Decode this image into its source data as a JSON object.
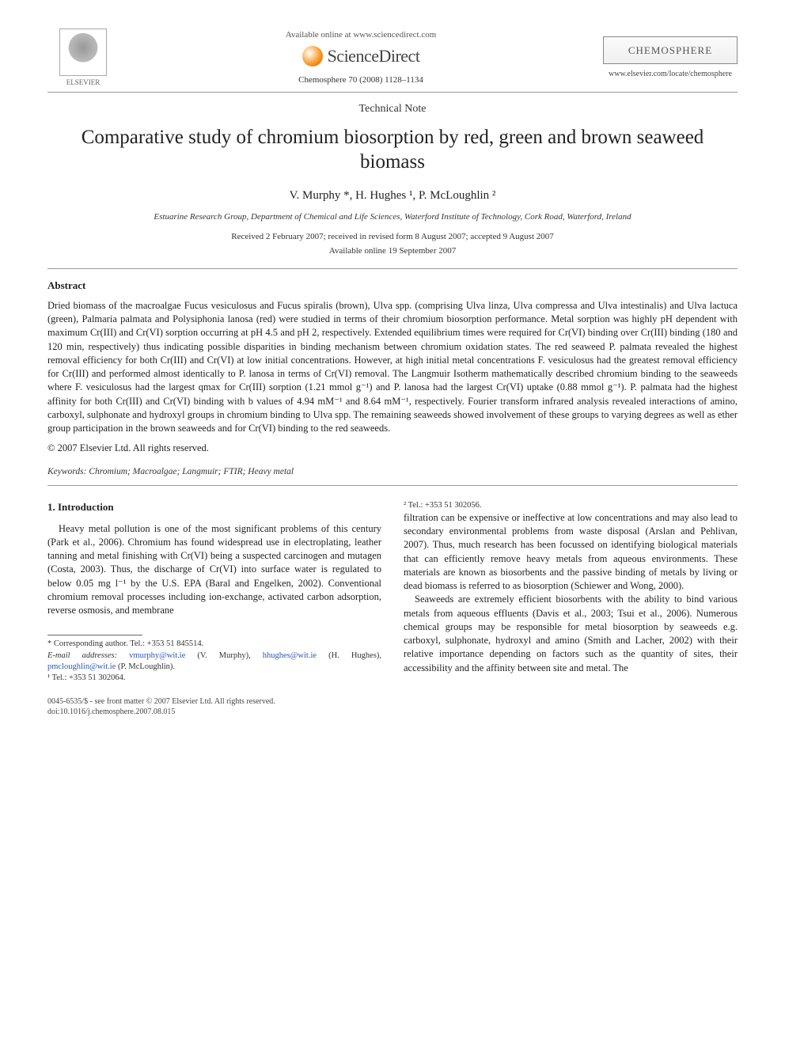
{
  "header": {
    "publisher_name": "ELSEVIER",
    "available_online": "Available online at www.sciencedirect.com",
    "sciencedirect": "ScienceDirect",
    "journal_line": "Chemosphere 70 (2008) 1128–1134",
    "journal_box": "CHEMOSPHERE",
    "journal_url": "www.elsevier.com/locate/chemosphere"
  },
  "article": {
    "note_type": "Technical Note",
    "title": "Comparative study of chromium biosorption by red, green and brown seaweed biomass",
    "authors_html": "V. Murphy *, H. Hughes ¹, P. McLoughlin ²",
    "affiliation": "Estuarine Research Group, Department of Chemical and Life Sciences, Waterford Institute of Technology, Cork Road, Waterford, Ireland",
    "received": "Received 2 February 2007; received in revised form 8 August 2007; accepted 9 August 2007",
    "online": "Available online 19 September 2007"
  },
  "abstract": {
    "heading": "Abstract",
    "body": "Dried biomass of the macroalgae Fucus vesiculosus and Fucus spiralis (brown), Ulva spp. (comprising Ulva linza, Ulva compressa and Ulva intestinalis) and Ulva lactuca (green), Palmaria palmata and Polysiphonia lanosa (red) were studied in terms of their chromium biosorption performance. Metal sorption was highly pH dependent with maximum Cr(III) and Cr(VI) sorption occurring at pH 4.5 and pH 2, respectively. Extended equilibrium times were required for Cr(VI) binding over Cr(III) binding (180 and 120 min, respectively) thus indicating possible disparities in binding mechanism between chromium oxidation states. The red seaweed P. palmata revealed the highest removal efficiency for both Cr(III) and Cr(VI) at low initial concentrations. However, at high initial metal concentrations F. vesiculosus had the greatest removal efficiency for Cr(III) and performed almost identically to P. lanosa in terms of Cr(VI) removal. The Langmuir Isotherm mathematically described chromium binding to the seaweeds where F. vesiculosus had the largest qmax for Cr(III) sorption (1.21 mmol g⁻¹) and P. lanosa had the largest Cr(VI) uptake (0.88 mmol g⁻¹). P. palmata had the highest affinity for both Cr(III) and Cr(VI) binding with b values of 4.94 mM⁻¹ and 8.64 mM⁻¹, respectively. Fourier transform infrared analysis revealed interactions of amino, carboxyl, sulphonate and hydroxyl groups in chromium binding to Ulva spp. The remaining seaweeds showed involvement of these groups to varying degrees as well as ether group participation in the brown seaweeds and for Cr(VI) binding to the red seaweeds.",
    "copyright": "© 2007 Elsevier Ltd. All rights reserved."
  },
  "keywords": {
    "label": "Keywords:",
    "list": "Chromium; Macroalgae; Langmuir; FTIR; Heavy metal"
  },
  "intro": {
    "heading": "1. Introduction",
    "p1": "Heavy metal pollution is one of the most significant problems of this century (Park et al., 2006). Chromium has found widespread use in electroplating, leather tanning and metal finishing with Cr(VI) being a suspected carcinogen and mutagen (Costa, 2003). Thus, the discharge of Cr(VI) into surface water is regulated to below 0.05 mg l⁻¹ by the U.S. EPA (Baral and Engelken, 2002). Conventional chromium removal processes including ion-exchange, activated carbon adsorption, reverse osmosis, and membrane",
    "p2": "filtration can be expensive or ineffective at low concentrations and may also lead to secondary environmental problems from waste disposal (Arslan and Pehlivan, 2007). Thus, much research has been focussed on identifying biological materials that can efficiently remove heavy metals from aqueous environments. These materials are known as biosorbents and the passive binding of metals by living or dead biomass is referred to as biosorption (Schiewer and Wong, 2000).",
    "p3": "Seaweeds are extremely efficient biosorbents with the ability to bind various metals from aqueous effluents (Davis et al., 2003; Tsui et al., 2006). Numerous chemical groups may be responsible for metal biosorption by seaweeds e.g. carboxyl, sulphonate, hydroxyl and amino (Smith and Lacher, 2002) with their relative importance depending on factors such as the quantity of sites, their accessibility and the affinity between site and metal. The"
  },
  "footnotes": {
    "corr": "* Corresponding author. Tel.: +353 51 845514.",
    "emails_label": "E-mail addresses:",
    "email1": "vmurphy@wit.ie",
    "email1_who": "(V. Murphy),",
    "email2": "hhughes@wit.ie",
    "email2_who": "(H. Hughes),",
    "email3": "pmcloughlin@wit.ie",
    "email3_who": "(P. McLoughlin).",
    "fn1": "¹ Tel.: +353 51 302064.",
    "fn2": "² Tel.: +353 51 302056."
  },
  "footer": {
    "left1": "0045-6535/$ - see front matter © 2007 Elsevier Ltd. All rights reserved.",
    "left2": "doi:10.1016/j.chemosphere.2007.08.015"
  },
  "colors": {
    "link": "#2a58b5",
    "text": "#222222",
    "rule": "#999999",
    "sd_orange": "#f7941e"
  }
}
